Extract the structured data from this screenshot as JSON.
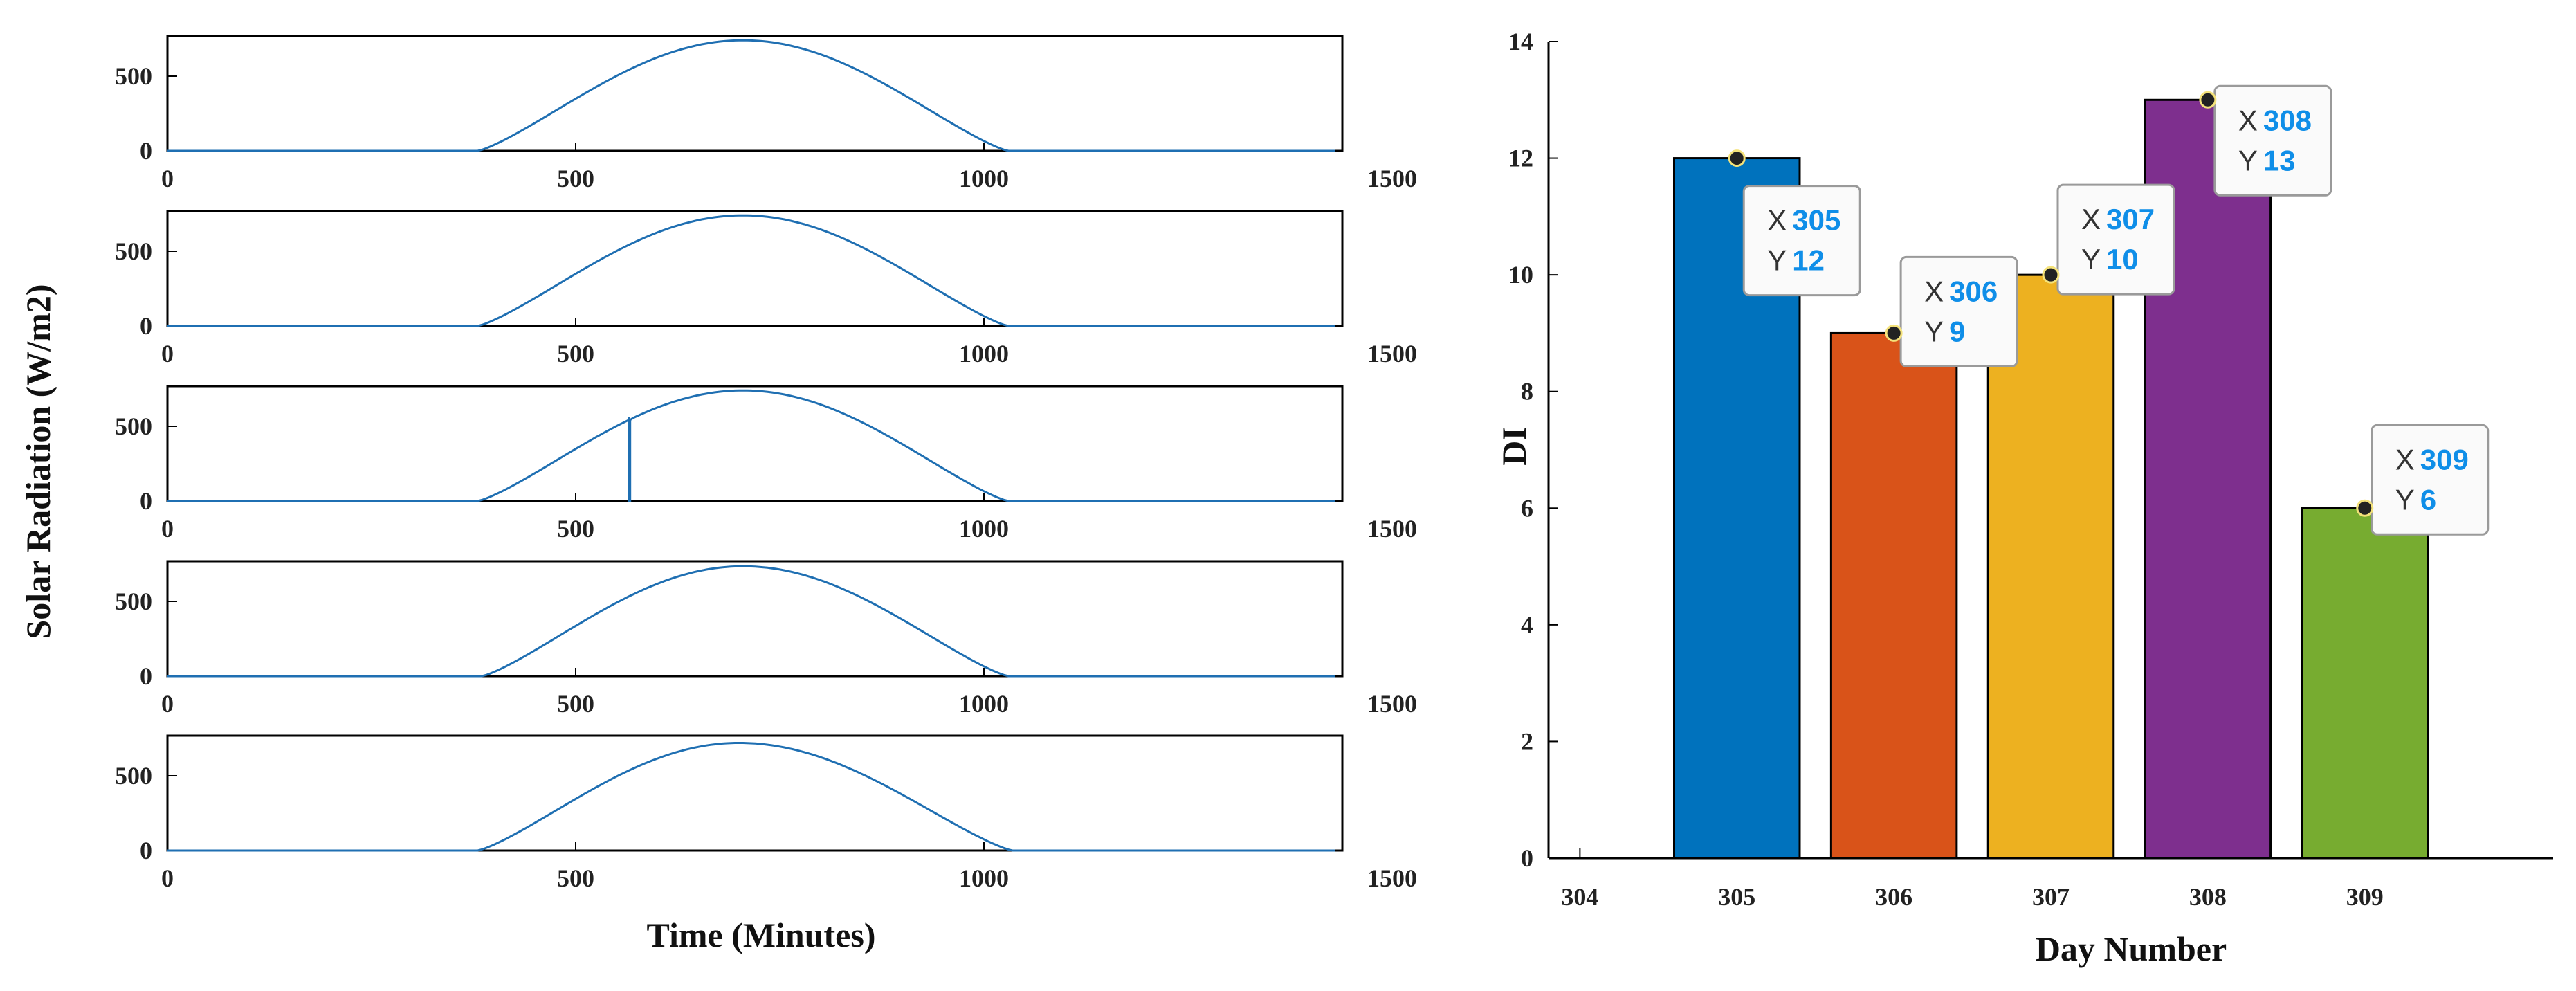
{
  "chart_data": [
    {
      "type": "line",
      "panels": 5,
      "xlabel": "Time (Minutes)",
      "ylabel": "Solar Radiation (W/m2)",
      "xlim": [
        0,
        1500
      ],
      "xticks": [
        "0",
        "500",
        "1000",
        "1500"
      ],
      "ylim": [
        0,
        750
      ],
      "yticks": [
        "0",
        "500"
      ],
      "line_color": "#1f6fb2",
      "grid": false,
      "series": [
        {
          "sunrise": 380,
          "sunset": 1030,
          "peak": 740,
          "peak_time": 705,
          "x": [
            0,
            380,
            450,
            550,
            705,
            850,
            950,
            1030,
            1430
          ],
          "y": [
            0,
            0,
            230,
            560,
            740,
            560,
            250,
            0,
            0
          ]
        },
        {
          "sunrise": 380,
          "sunset": 1030,
          "peak": 740,
          "peak_time": 705,
          "x": [
            0,
            380,
            450,
            550,
            705,
            850,
            950,
            1030,
            1430
          ],
          "y": [
            0,
            0,
            230,
            560,
            740,
            560,
            250,
            0,
            0
          ]
        },
        {
          "sunrise": 380,
          "sunset": 1030,
          "peak": 740,
          "peak_time": 705,
          "x": [
            0,
            380,
            450,
            550,
            705,
            850,
            950,
            1030,
            1430
          ],
          "y": [
            0,
            0,
            230,
            560,
            740,
            560,
            250,
            0,
            0
          ],
          "dip": {
            "x": 565,
            "y": 0,
            "pre_spike": 560
          }
        },
        {
          "sunrise": 385,
          "sunset": 1030,
          "peak": 735,
          "peak_time": 705,
          "x": [
            0,
            385,
            450,
            550,
            705,
            850,
            950,
            1030,
            1430
          ],
          "y": [
            0,
            0,
            225,
            555,
            735,
            555,
            245,
            0,
            0
          ]
        },
        {
          "sunrise": 380,
          "sunset": 1035,
          "peak": 720,
          "peak_time": 700,
          "x": [
            0,
            380,
            450,
            550,
            700,
            850,
            950,
            1035,
            1430
          ],
          "y": [
            0,
            0,
            225,
            545,
            720,
            550,
            250,
            0,
            0
          ]
        }
      ]
    },
    {
      "type": "bar",
      "xlabel": "Day Number",
      "ylabel": "DI",
      "categories": [
        "305",
        "306",
        "307",
        "308",
        "309"
      ],
      "x": [
        305,
        306,
        307,
        308,
        309
      ],
      "values": [
        12,
        9,
        10,
        13,
        6
      ],
      "colors": [
        "#0072bd",
        "#d95319",
        "#edb120",
        "#7e2f8e",
        "#77ac30"
      ],
      "xlim": [
        303.8,
        310.2
      ],
      "xticks": [
        "304",
        "305",
        "306",
        "307",
        "308",
        "309"
      ],
      "ylim": [
        0,
        14
      ],
      "yticks": [
        "0",
        "2",
        "4",
        "6",
        "8",
        "10",
        "12",
        "14"
      ],
      "grid": false,
      "datatips": [
        {
          "x_key": "X",
          "x_val": "305",
          "y_key": "Y",
          "y_val": "12"
        },
        {
          "x_key": "X",
          "x_val": "306",
          "y_key": "Y",
          "y_val": "9"
        },
        {
          "x_key": "X",
          "x_val": "307",
          "y_key": "Y",
          "y_val": "10"
        },
        {
          "x_key": "X",
          "x_val": "308",
          "y_key": "Y",
          "y_val": "13"
        },
        {
          "x_key": "X",
          "x_val": "309",
          "y_key": "Y",
          "y_val": "6"
        }
      ]
    }
  ]
}
